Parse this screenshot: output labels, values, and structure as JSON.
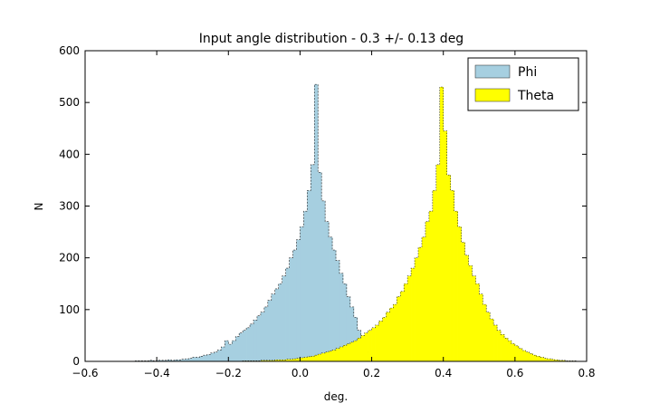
{
  "chart_data": {
    "type": "bar",
    "title": "Input angle distribution - 0.3 +/- 0.13 deg",
    "xlabel": "deg.",
    "ylabel": "N",
    "xlim": [
      -0.6,
      0.8
    ],
    "ylim": [
      0,
      600
    ],
    "xticks": [
      -0.6,
      -0.4,
      -0.2,
      0.0,
      0.2,
      0.4,
      0.6,
      0.8
    ],
    "xtick_labels": [
      "−0.6",
      "−0.4",
      "−0.2",
      "0.0",
      "0.2",
      "0.4",
      "0.6",
      "0.8"
    ],
    "yticks": [
      0,
      100,
      200,
      300,
      400,
      500,
      600
    ],
    "ytick_labels": [
      "0",
      "100",
      "200",
      "300",
      "400",
      "500",
      "600"
    ],
    "legend_position": "top-right",
    "histtype": "stepfilled",
    "series": [
      {
        "name": "Phi",
        "color": "#a6cfe0",
        "edge_color": "#222222",
        "bin_start": -0.46,
        "bin_width": 0.01,
        "counts": [
          1,
          1,
          1,
          1,
          2,
          1,
          2,
          2,
          2,
          3,
          2,
          3,
          3,
          4,
          5,
          6,
          8,
          8,
          10,
          12,
          13,
          16,
          18,
          22,
          28,
          40,
          33,
          40,
          48,
          55,
          60,
          65,
          72,
          80,
          88,
          95,
          105,
          118,
          130,
          140,
          150,
          165,
          180,
          200,
          215,
          235,
          260,
          290,
          330,
          380,
          535,
          365,
          310,
          270,
          240,
          215,
          195,
          170,
          150,
          125,
          105,
          85,
          60,
          38,
          22,
          15,
          10,
          6,
          4,
          3,
          2,
          1,
          1,
          1,
          1
        ]
      },
      {
        "name": "Theta",
        "color": "#ffff00",
        "edge_color": "#222222",
        "bin_start": -0.16,
        "bin_width": 0.01,
        "counts": [
          1,
          1,
          1,
          1,
          1,
          2,
          2,
          2,
          2,
          3,
          3,
          3,
          4,
          4,
          5,
          6,
          7,
          8,
          9,
          10,
          12,
          14,
          16,
          18,
          20,
          22,
          25,
          28,
          31,
          34,
          37,
          40,
          45,
          50,
          55,
          60,
          65,
          70,
          78,
          85,
          95,
          103,
          110,
          125,
          135,
          150,
          165,
          180,
          200,
          220,
          240,
          270,
          290,
          330,
          380,
          530,
          445,
          360,
          330,
          290,
          260,
          230,
          205,
          185,
          165,
          150,
          130,
          110,
          95,
          82,
          70,
          60,
          52,
          45,
          40,
          34,
          30,
          25,
          21,
          18,
          15,
          12,
          10,
          8,
          6,
          5,
          4,
          3,
          2,
          2,
          1,
          1,
          1
        ]
      }
    ]
  }
}
